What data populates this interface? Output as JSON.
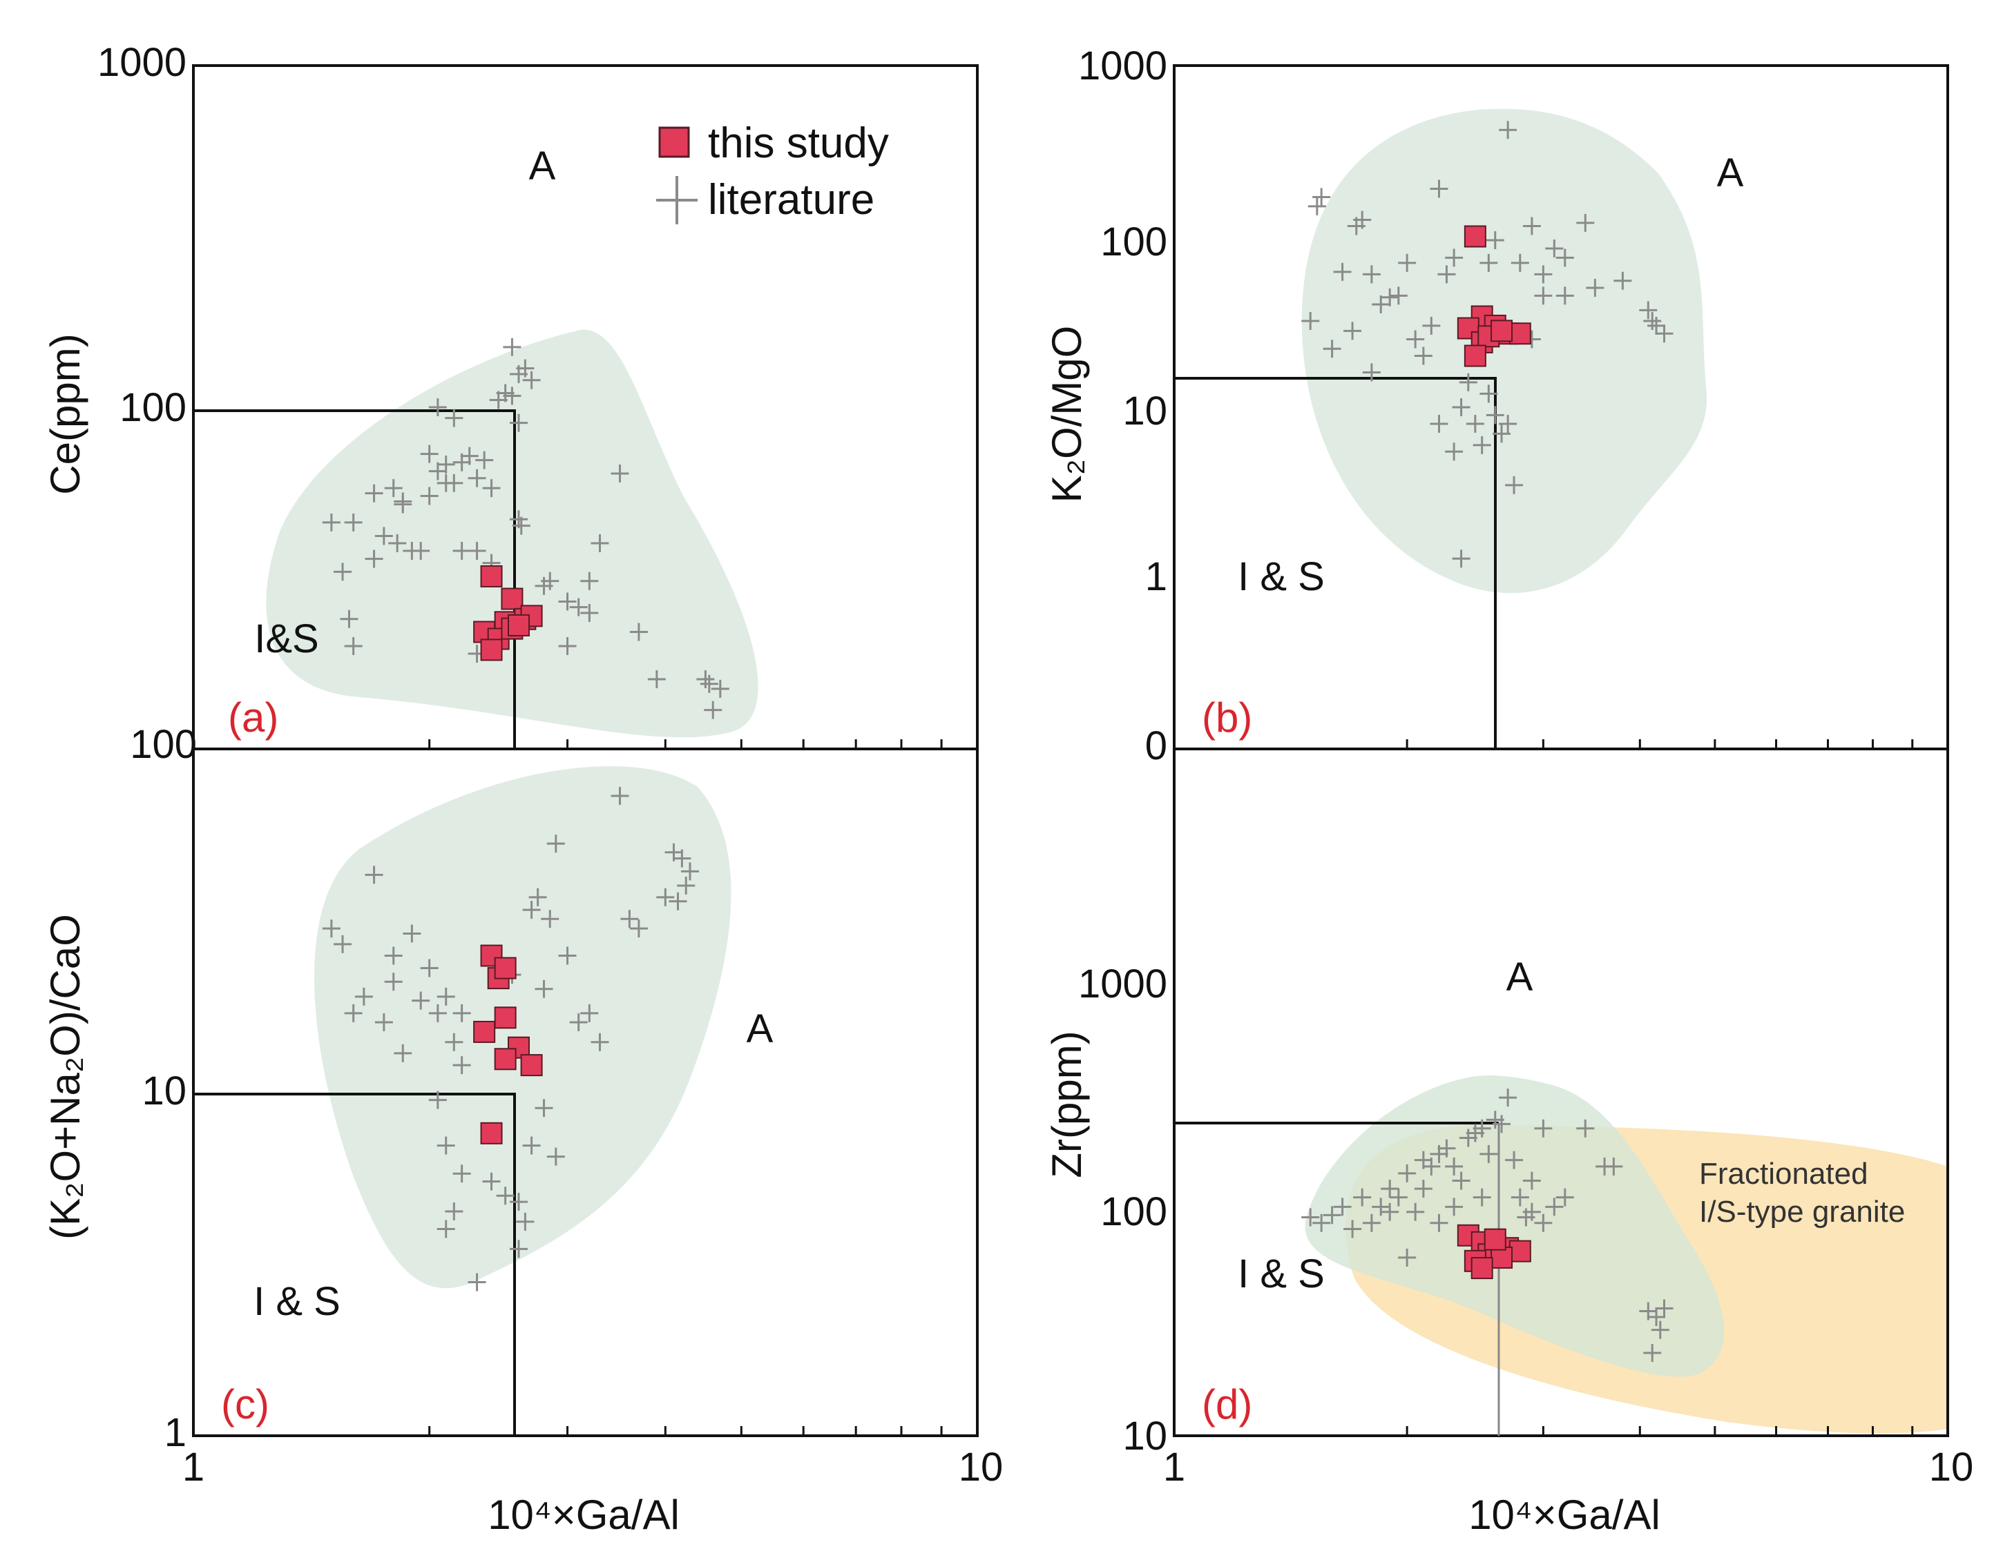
{
  "legend": {
    "this_study": "this study",
    "literature": "literature"
  },
  "colors": {
    "this_study_fill": "#e23b5a",
    "this_study_edge": "#5a1a24",
    "literature": "#8a8a8a",
    "field_green": "#dbe9de",
    "field_orange": "#fbe4b5",
    "panel_label": "#d8262e"
  },
  "chart_data": [
    {
      "panel": "(a)",
      "type": "scatter",
      "xlabel": "10⁴×Ga/Al",
      "ylabel": "Ce(ppm)",
      "xscale": "log",
      "yscale": "log",
      "xlim": [
        1,
        10
      ],
      "ylim": [
        10,
        1000
      ],
      "x_ticks": [],
      "y_ticks": [
        100,
        1000
      ],
      "y_tick_labels": [
        "100",
        "1000"
      ],
      "bottom_label": "100",
      "region_labels": [
        "A",
        "I&S"
      ],
      "discriminant": {
        "x": 2.6,
        "y": 100
      },
      "this_study": [
        [
          2.4,
          32
        ],
        [
          2.55,
          27.5
        ],
        [
          2.35,
          22
        ],
        [
          2.5,
          23.5
        ],
        [
          2.65,
          24
        ],
        [
          2.7,
          24.5
        ],
        [
          2.45,
          21
        ],
        [
          2.55,
          22.5
        ],
        [
          2.6,
          23
        ],
        [
          2.4,
          19.5
        ]
      ],
      "literature": [
        [
          1.5,
          46
        ],
        [
          1.55,
          33
        ],
        [
          1.6,
          46
        ],
        [
          1.58,
          24
        ],
        [
          1.6,
          20
        ],
        [
          1.7,
          56
        ],
        [
          1.75,
          42
        ],
        [
          1.8,
          58
        ],
        [
          1.85,
          52
        ],
        [
          1.7,
          36
        ],
        [
          1.82,
          40
        ],
        [
          1.9,
          38
        ],
        [
          1.95,
          38
        ],
        [
          2.0,
          73
        ],
        [
          2.05,
          65
        ],
        [
          2.1,
          68
        ],
        [
          2.15,
          60
        ],
        [
          2.2,
          69
        ],
        [
          2.25,
          72
        ],
        [
          2.3,
          62
        ],
        [
          2.35,
          70
        ],
        [
          2.4,
          58
        ],
        [
          2.45,
          105
        ],
        [
          2.5,
          110
        ],
        [
          2.55,
          108
        ],
        [
          2.6,
          125
        ],
        [
          2.65,
          130
        ],
        [
          2.55,
          150
        ],
        [
          2.7,
          120
        ],
        [
          2.6,
          90
        ],
        [
          2.0,
          55
        ],
        [
          2.1,
          60
        ],
        [
          2.2,
          38
        ],
        [
          2.3,
          38
        ],
        [
          2.6,
          47
        ],
        [
          2.62,
          45
        ],
        [
          2.8,
          30
        ],
        [
          2.85,
          31
        ],
        [
          3.0,
          27
        ],
        [
          3.1,
          26
        ],
        [
          3.2,
          31
        ],
        [
          3.3,
          40
        ],
        [
          3.2,
          25
        ],
        [
          3.0,
          20
        ],
        [
          2.3,
          19
        ],
        [
          3.5,
          64
        ],
        [
          3.7,
          22
        ],
        [
          3.9,
          16
        ],
        [
          4.5,
          16
        ],
        [
          4.7,
          15
        ],
        [
          4.6,
          13
        ],
        [
          4.55,
          15.5
        ],
        [
          2.4,
          35
        ],
        [
          1.85,
          53
        ],
        [
          2.05,
          100
        ],
        [
          2.15,
          93
        ]
      ],
      "green_field": "convex hull around literature points"
    },
    {
      "panel": "(b)",
      "type": "scatter",
      "xlabel": "",
      "ylabel": "K₂O/MgO",
      "xscale": "log",
      "yscale": "log",
      "xlim": [
        1,
        10
      ],
      "ylim": [
        0.1,
        1000
      ],
      "y_ticks": [
        0.1,
        1,
        10,
        100,
        1000
      ],
      "y_tick_labels": [
        "0",
        "1",
        "10",
        "100",
        "1000"
      ],
      "region_labels": [
        "A",
        "I & S"
      ],
      "discriminant": {
        "x": 2.7,
        "y": 16
      },
      "this_study": [
        [
          2.45,
          100
        ],
        [
          2.5,
          34
        ],
        [
          2.4,
          29
        ],
        [
          2.6,
          30
        ],
        [
          2.7,
          27
        ],
        [
          2.8,
          27
        ],
        [
          2.5,
          24
        ],
        [
          2.55,
          26
        ],
        [
          2.45,
          20
        ],
        [
          2.65,
          28
        ]
      ],
      "literature": [
        [
          1.5,
          32
        ],
        [
          1.55,
          170
        ],
        [
          1.53,
          150
        ],
        [
          1.6,
          22
        ],
        [
          1.65,
          62
        ],
        [
          1.7,
          28
        ],
        [
          1.72,
          115
        ],
        [
          1.75,
          125
        ],
        [
          1.8,
          60
        ],
        [
          1.8,
          16
        ],
        [
          1.85,
          40
        ],
        [
          1.9,
          44
        ],
        [
          1.95,
          45
        ],
        [
          2.0,
          70
        ],
        [
          2.05,
          25
        ],
        [
          2.1,
          20
        ],
        [
          2.15,
          30
        ],
        [
          2.2,
          190
        ],
        [
          2.25,
          60
        ],
        [
          2.3,
          75
        ],
        [
          2.35,
          10
        ],
        [
          2.4,
          14
        ],
        [
          2.45,
          8
        ],
        [
          2.5,
          6
        ],
        [
          2.55,
          12
        ],
        [
          2.6,
          9
        ],
        [
          2.65,
          7
        ],
        [
          2.7,
          8
        ],
        [
          2.75,
          3.5
        ],
        [
          2.35,
          1.3
        ],
        [
          2.7,
          420
        ],
        [
          2.8,
          70
        ],
        [
          2.9,
          115
        ],
        [
          3.0,
          60
        ],
        [
          3.1,
          85
        ],
        [
          3.2,
          75
        ],
        [
          3.0,
          45
        ],
        [
          3.2,
          45
        ],
        [
          3.4,
          120
        ],
        [
          3.5,
          50
        ],
        [
          3.8,
          55
        ],
        [
          4.1,
          37
        ],
        [
          4.2,
          30
        ],
        [
          4.3,
          27
        ],
        [
          4.15,
          32
        ],
        [
          2.3,
          5.5
        ],
        [
          2.2,
          8
        ],
        [
          2.9,
          25
        ],
        [
          2.6,
          95
        ],
        [
          2.55,
          70
        ]
      ],
      "green_field": "convex hull around literature points"
    },
    {
      "panel": "(c)",
      "type": "scatter",
      "xlabel": "10⁴×Ga/Al",
      "ylabel": "(K₂O+Na₂O)/CaO",
      "xscale": "log",
      "yscale": "log",
      "xlim": [
        1,
        10
      ],
      "ylim": [
        1,
        100
      ],
      "x_ticks": [
        1,
        10
      ],
      "x_tick_labels": [
        "1",
        "10"
      ],
      "y_ticks": [
        1,
        10,
        100
      ],
      "y_tick_labels": [
        "1",
        "10",
        "100"
      ],
      "region_labels": [
        "A",
        "I & S"
      ],
      "discriminant": {
        "x": 2.6,
        "y": 10
      },
      "this_study": [
        [
          2.4,
          25
        ],
        [
          2.45,
          21.5
        ],
        [
          2.5,
          23
        ],
        [
          2.5,
          16.5
        ],
        [
          2.35,
          15
        ],
        [
          2.6,
          13.5
        ],
        [
          2.5,
          12.5
        ],
        [
          2.7,
          12
        ],
        [
          2.4,
          7.6
        ]
      ],
      "literature": [
        [
          1.5,
          30
        ],
        [
          1.55,
          27
        ],
        [
          1.6,
          17
        ],
        [
          1.65,
          19
        ],
        [
          1.7,
          43
        ],
        [
          1.75,
          16
        ],
        [
          1.8,
          25
        ],
        [
          1.85,
          13
        ],
        [
          1.9,
          29
        ],
        [
          1.95,
          18.5
        ],
        [
          2.0,
          23
        ],
        [
          2.05,
          17
        ],
        [
          2.1,
          19
        ],
        [
          2.15,
          14
        ],
        [
          2.2,
          12
        ],
        [
          2.05,
          9.5
        ],
        [
          2.1,
          7
        ],
        [
          2.2,
          5.8
        ],
        [
          2.15,
          4.5
        ],
        [
          2.1,
          4
        ],
        [
          2.3,
          2.8
        ],
        [
          2.4,
          5.5
        ],
        [
          2.5,
          5
        ],
        [
          2.6,
          4.8
        ],
        [
          2.65,
          4.2
        ],
        [
          2.6,
          3.5
        ],
        [
          2.7,
          7
        ],
        [
          2.8,
          9
        ],
        [
          2.8,
          20
        ],
        [
          2.7,
          34
        ],
        [
          2.75,
          37
        ],
        [
          2.85,
          32
        ],
        [
          3.0,
          25
        ],
        [
          2.9,
          53
        ],
        [
          3.1,
          16
        ],
        [
          3.2,
          17
        ],
        [
          3.3,
          14
        ],
        [
          3.5,
          73
        ],
        [
          3.6,
          32
        ],
        [
          3.7,
          30
        ],
        [
          4.0,
          37
        ],
        [
          4.1,
          50
        ],
        [
          4.2,
          48
        ],
        [
          4.3,
          44
        ],
        [
          4.25,
          40
        ],
        [
          4.15,
          36
        ],
        [
          2.55,
          22
        ],
        [
          1.8,
          21
        ],
        [
          2.2,
          17
        ],
        [
          2.9,
          6.5
        ]
      ],
      "green_field": "convex hull around literature points"
    },
    {
      "panel": "(d)",
      "type": "scatter",
      "xlabel": "10⁴×Ga/Al",
      "ylabel": "Zr(ppm)",
      "xscale": "log",
      "yscale": "log",
      "xlim": [
        1,
        10
      ],
      "ylim": [
        10,
        10000
      ],
      "x_ticks": [
        1,
        10
      ],
      "x_tick_labels": [
        "1",
        "10"
      ],
      "y_ticks": [
        10,
        100,
        1000
      ],
      "y_tick_labels": [
        "10",
        "100",
        "1000"
      ],
      "region_labels": [
        "A",
        "I & S"
      ],
      "discriminant": {
        "x": 2.75,
        "y": 250
      },
      "field_note": [
        "Fractionated",
        "I/S-type granite"
      ],
      "this_study": [
        [
          2.4,
          75
        ],
        [
          2.5,
          70
        ],
        [
          2.6,
          68
        ],
        [
          2.7,
          66
        ],
        [
          2.8,
          64
        ],
        [
          2.55,
          62
        ],
        [
          2.45,
          58
        ],
        [
          2.65,
          60
        ],
        [
          2.5,
          54
        ],
        [
          2.6,
          72
        ]
      ],
      "literature": [
        [
          1.5,
          90
        ],
        [
          1.55,
          85
        ],
        [
          1.6,
          92
        ],
        [
          1.65,
          100
        ],
        [
          1.7,
          80
        ],
        [
          1.75,
          110
        ],
        [
          1.8,
          85
        ],
        [
          1.85,
          100
        ],
        [
          1.9,
          120
        ],
        [
          1.95,
          110
        ],
        [
          2.0,
          140
        ],
        [
          2.05,
          95
        ],
        [
          2.1,
          160
        ],
        [
          2.15,
          150
        ],
        [
          2.2,
          170
        ],
        [
          2.25,
          180
        ],
        [
          2.3,
          150
        ],
        [
          2.35,
          130
        ],
        [
          2.4,
          200
        ],
        [
          2.45,
          210
        ],
        [
          2.5,
          220
        ],
        [
          2.55,
          170
        ],
        [
          2.6,
          240
        ],
        [
          2.65,
          230
        ],
        [
          2.7,
          300
        ],
        [
          2.75,
          160
        ],
        [
          2.8,
          110
        ],
        [
          2.85,
          90
        ],
        [
          2.9,
          95
        ],
        [
          3.0,
          85
        ],
        [
          3.1,
          100
        ],
        [
          3.2,
          110
        ],
        [
          3.0,
          220
        ],
        [
          3.4,
          220
        ],
        [
          3.6,
          150
        ],
        [
          3.7,
          150
        ],
        [
          4.1,
          35
        ],
        [
          4.2,
          33
        ],
        [
          4.3,
          36
        ],
        [
          4.25,
          29
        ],
        [
          4.15,
          23
        ],
        [
          2.0,
          60
        ],
        [
          2.2,
          85
        ],
        [
          2.3,
          100
        ],
        [
          2.5,
          110
        ],
        [
          2.9,
          130
        ],
        [
          2.1,
          120
        ],
        [
          1.9,
          95
        ]
      ],
      "green_field": "convex hull around literature points",
      "orange_field": "fractionated I/S-type granite envelope"
    }
  ]
}
